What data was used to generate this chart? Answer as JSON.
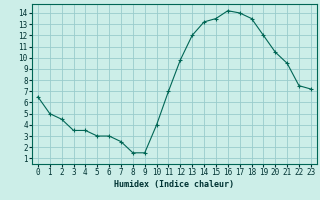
{
  "hours": [
    0,
    1,
    2,
    3,
    4,
    5,
    6,
    7,
    8,
    9,
    10,
    11,
    12,
    13,
    14,
    15,
    16,
    17,
    18,
    19,
    20,
    21,
    22,
    23
  ],
  "values": [
    6.5,
    5.0,
    4.5,
    3.5,
    3.5,
    3.0,
    3.0,
    2.5,
    1.5,
    1.5,
    4.0,
    7.0,
    9.8,
    12.0,
    13.2,
    13.5,
    14.2,
    14.0,
    13.5,
    12.0,
    10.5,
    9.5,
    7.5,
    7.2
  ],
  "xlabel": "Humidex (Indice chaleur)",
  "bg_color": "#cceee8",
  "grid_color": "#99cccc",
  "line_color": "#006655",
  "xlim": [
    -0.5,
    23.5
  ],
  "ylim": [
    0.5,
    14.8
  ],
  "yticks": [
    1,
    2,
    3,
    4,
    5,
    6,
    7,
    8,
    9,
    10,
    11,
    12,
    13,
    14
  ],
  "xticks": [
    0,
    1,
    2,
    3,
    4,
    5,
    6,
    7,
    8,
    9,
    10,
    11,
    12,
    13,
    14,
    15,
    16,
    17,
    18,
    19,
    20,
    21,
    22,
    23
  ],
  "tick_fontsize": 5.5,
  "xlabel_fontsize": 6.0
}
